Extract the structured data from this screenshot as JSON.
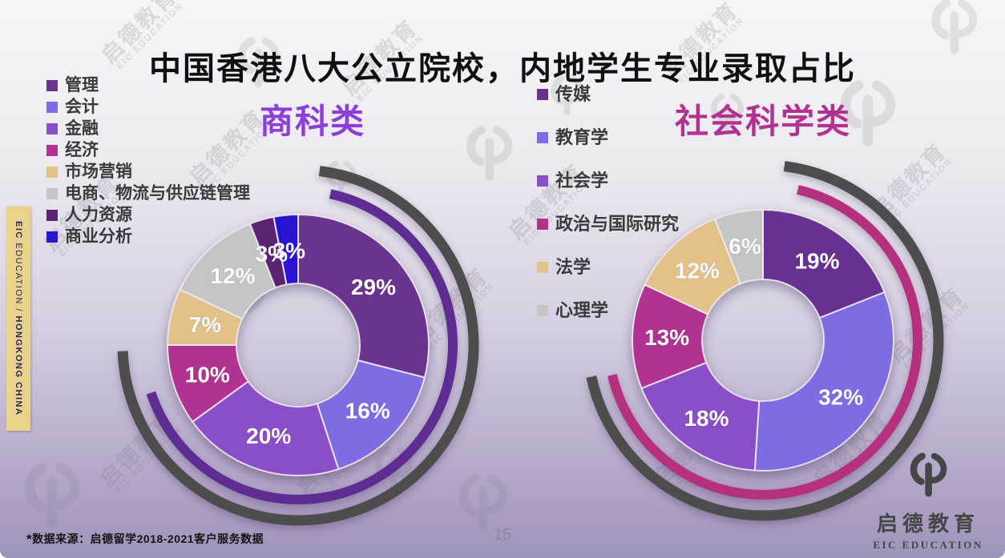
{
  "slide": {
    "title": "中国香港八大公立院校，内地学生专业录取占比",
    "page_number": "15",
    "source_note_star": "*",
    "source_note": "数据来源：启德留学2018-2021客户服务数据",
    "side_tab": {
      "brand": "EIC",
      "brand_rest": " EDUCATION",
      "separator": " / ",
      "region": "HONGKONG CHINA"
    },
    "watermark": {
      "cn": "启德教育",
      "en": "EIC EDUCATION"
    },
    "logo": {
      "cn": "启德教育",
      "en": "EIC EDUCATION"
    }
  },
  "chart_data": [
    {
      "type": "pie",
      "subtype": "donut",
      "title": "商科类",
      "title_color": "#8B3FD6",
      "categories": [
        "管理",
        "会计",
        "金融",
        "经济",
        "市场营销",
        "电商、物流与供应链管理",
        "人力资源",
        "商业分析"
      ],
      "values": [
        29,
        16,
        20,
        10,
        7,
        12,
        3,
        3
      ],
      "unit": "%",
      "slice_colors": [
        "#69338F",
        "#7D6CE2",
        "#8A4FC8",
        "#B13390",
        "#E3C289",
        "#C6C5C6",
        "#5A2470",
        "#2A14D4"
      ],
      "label_color": "#FFFFFF",
      "start_angle_deg": 0,
      "direction": "clockwise",
      "legend_position": "left",
      "decor_outer_arc_color": "#4D4D4D",
      "decor_accent_arc_color": "#5E2D91"
    },
    {
      "type": "pie",
      "subtype": "donut",
      "title": "社会科学类",
      "title_color": "#B13390",
      "categories": [
        "传媒",
        "教育学",
        "社会学",
        "政治与国际研究",
        "法学",
        "心理学"
      ],
      "values": [
        19,
        32,
        18,
        13,
        12,
        6
      ],
      "unit": "%",
      "slice_colors": [
        "#66318F",
        "#7D6CE2",
        "#8A4FC8",
        "#B13390",
        "#E3C289",
        "#C6C5C6"
      ],
      "label_color": "#FFFFFF",
      "start_angle_deg": 0,
      "direction": "clockwise",
      "legend_position": "left",
      "decor_outer_arc_color": "#4D4D4D",
      "decor_accent_arc_color": "#B5317E"
    }
  ]
}
